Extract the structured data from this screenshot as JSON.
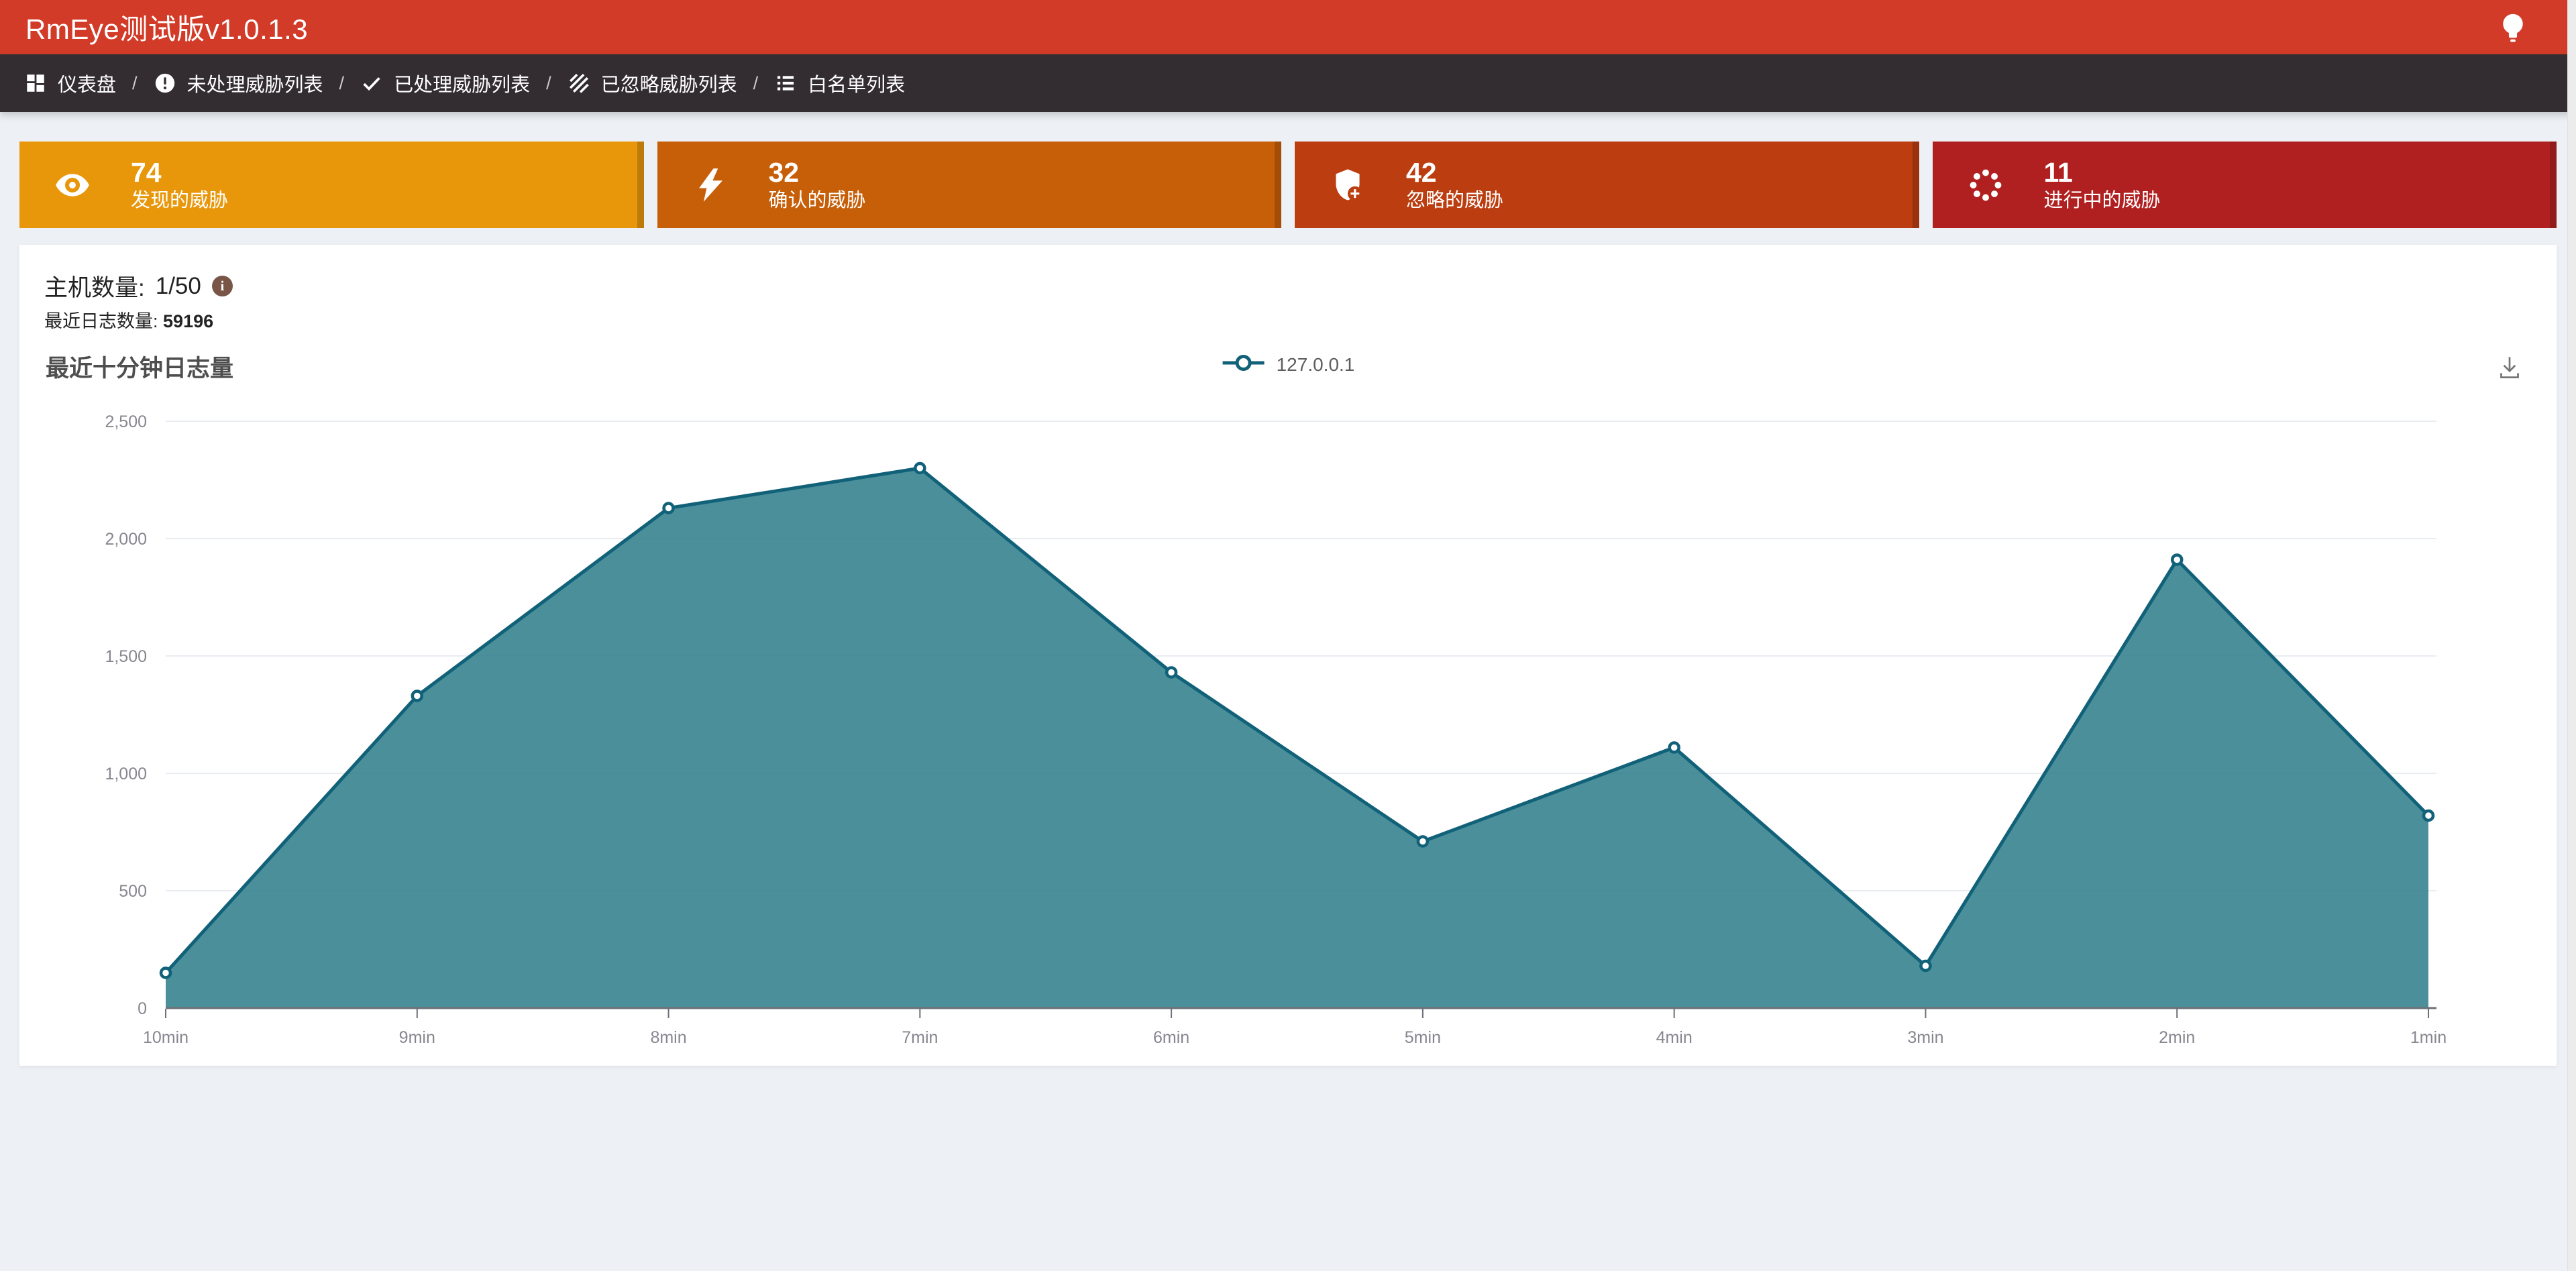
{
  "header": {
    "title": "RmEye测试版v1.0.1.3",
    "bg": "#D23B28"
  },
  "nav": {
    "separator": "/",
    "items": [
      {
        "label": "仪表盘",
        "icon": "dashboard-icon"
      },
      {
        "label": "未处理威胁列表",
        "icon": "error-icon"
      },
      {
        "label": "已处理威胁列表",
        "icon": "check-icon"
      },
      {
        "label": "已忽略威胁列表",
        "icon": "hatch-icon"
      },
      {
        "label": "白名单列表",
        "icon": "list-icon"
      }
    ]
  },
  "stats": [
    {
      "value": "74",
      "label": "发现的威胁",
      "icon": "eye-icon",
      "color": "#E8970B"
    },
    {
      "value": "32",
      "label": "确认的威胁",
      "icon": "bolt-icon",
      "color": "#C75E08"
    },
    {
      "value": "42",
      "label": "忽略的威胁",
      "icon": "shield-plus-icon",
      "color": "#BB3D10"
    },
    {
      "value": "11",
      "label": "进行中的威胁",
      "icon": "spinner-icon",
      "color": "#B12020"
    }
  ],
  "host": {
    "label": "主机数量:",
    "value": "1/50",
    "info_icon": "info-icon",
    "info_color": "#795548"
  },
  "logs": {
    "label": "最近日志数量:",
    "value": "59196"
  },
  "chart_data": {
    "type": "area",
    "title": "最近十分钟日志量",
    "categories": [
      "10min",
      "9min",
      "8min",
      "7min",
      "6min",
      "5min",
      "4min",
      "3min",
      "2min",
      "1min"
    ],
    "series": [
      {
        "name": "127.0.0.1",
        "values": [
          150,
          1330,
          2130,
          2300,
          1430,
          710,
          1110,
          180,
          1910,
          820
        ]
      }
    ],
    "xlabel": "",
    "ylabel": "",
    "ylim": [
      0,
      2500
    ],
    "ytick_step": 500,
    "ytick_labels": [
      "0",
      "500",
      "1,000",
      "1,500",
      "2,000",
      "2,500"
    ],
    "grid": true,
    "legend_position": "top-center",
    "line_color": "#116179",
    "fill_color": "#317F8C",
    "fill_opacity": 0.88,
    "marker": "hollow-circle",
    "grid_color": "#E8ECF2",
    "axis_color": "#6E7079",
    "axis_label_color": "#86868F",
    "toolbox": "save-as-image"
  },
  "colors": {
    "page_bg": "#EDF1F5",
    "header_bg": "#D23B28",
    "nav_bg": "#332D32",
    "panel_bg": "#FFFFFF",
    "download_icon": "#757575"
  }
}
